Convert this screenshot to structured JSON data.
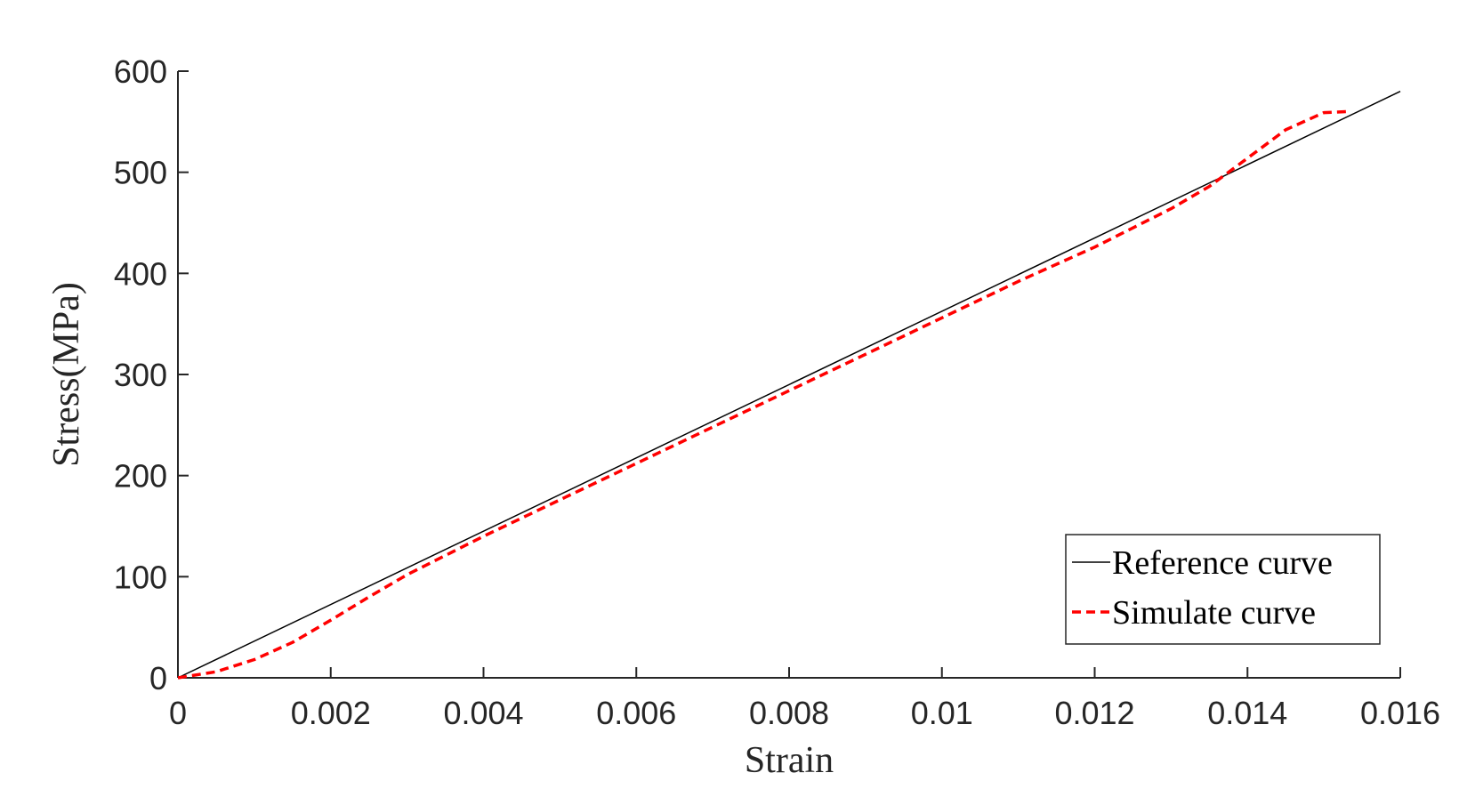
{
  "chart_data": {
    "type": "line",
    "title": "",
    "xlabel": "Strain",
    "ylabel": "Stress(MPa)",
    "xlim": [
      0,
      0.016
    ],
    "ylim": [
      0,
      600
    ],
    "x_ticks": [
      0,
      0.002,
      0.004,
      0.006,
      0.008,
      0.01,
      0.012,
      0.014,
      0.016
    ],
    "x_tick_labels": [
      "0",
      "0.002",
      "0.004",
      "0.006",
      "0.008",
      "0.01",
      "0.012",
      "0.014",
      "0.016"
    ],
    "y_ticks": [
      0,
      100,
      200,
      300,
      400,
      500,
      600
    ],
    "y_tick_labels": [
      "0",
      "100",
      "200",
      "300",
      "400",
      "500",
      "600"
    ],
    "grid": false,
    "legend_position": "bottom-right",
    "series": [
      {
        "name": "Reference curve",
        "color": "#000000",
        "style": "solid",
        "x": [
          0,
          0.016
        ],
        "y": [
          0,
          580
        ]
      },
      {
        "name": "Simulate curve",
        "color": "#ff0000",
        "style": "dashed",
        "x": [
          0,
          0.0005,
          0.001,
          0.0015,
          0.002,
          0.0025,
          0.003,
          0.004,
          0.005,
          0.006,
          0.007,
          0.008,
          0.009,
          0.01,
          0.011,
          0.012,
          0.013,
          0.0135,
          0.014,
          0.0145,
          0.015,
          0.0153
        ],
        "y": [
          0,
          6,
          18,
          35,
          57,
          80,
          102,
          140,
          176,
          212,
          248,
          284,
          320,
          356,
          392,
          426,
          464,
          486,
          514,
          542,
          559,
          560
        ]
      }
    ]
  }
}
